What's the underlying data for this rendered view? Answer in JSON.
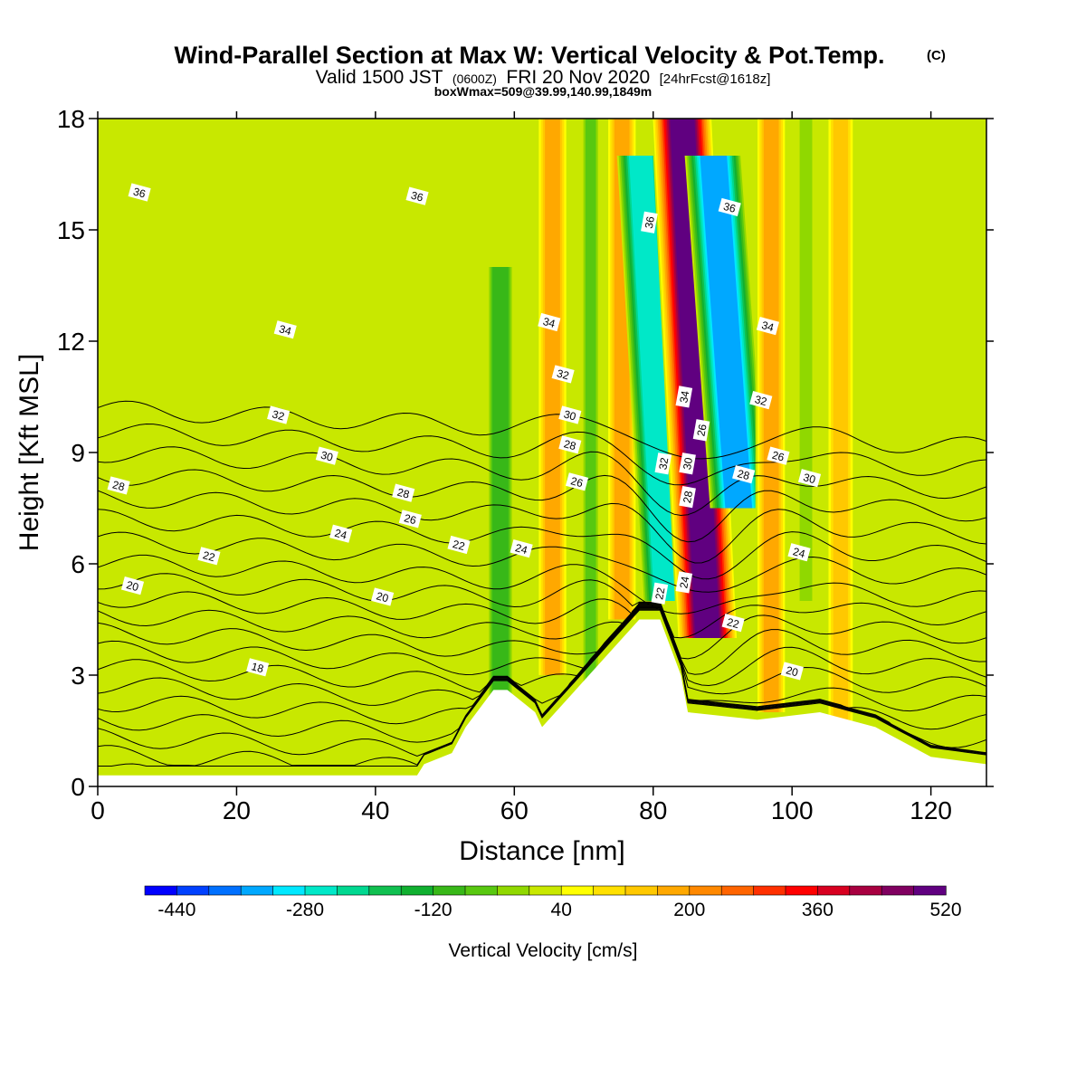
{
  "chart_data": {
    "type": "heatmap",
    "title": "Wind-Parallel Section at Max W: Vertical Velocity & Pot.Temp.",
    "title_mark": "(C)",
    "subtitle_main": "Valid 1500 JST",
    "subtitle_z": "(0600Z)",
    "subtitle_date": "FRI 20 Nov 2020",
    "subtitle_fcst": "[24hrFcst@1618z]",
    "subtitle2": "boxWmax=509@39.99,140.99,1849m",
    "xlabel": "Distance [nm]",
    "ylabel": "Height [Kft MSL]",
    "xlim": [
      0,
      128
    ],
    "ylim": [
      0,
      18
    ],
    "x_ticks": [
      0,
      20,
      40,
      60,
      80,
      100,
      120
    ],
    "y_ticks": [
      0,
      3,
      6,
      9,
      12,
      15,
      18
    ],
    "colorbar": {
      "label": "Vertical Velocity [cm/s]",
      "tick_values": [
        -440,
        -280,
        -120,
        40,
        200,
        360,
        520
      ],
      "tick_labels": [
        "-440",
        "-280",
        "-120",
        "40",
        "200",
        "360",
        "520"
      ],
      "min": -480,
      "step": 40,
      "colors": [
        "#0000ff",
        "#0040ff",
        "#0070ff",
        "#00a8ff",
        "#00e8ff",
        "#00e8c8",
        "#00d890",
        "#10c050",
        "#10b030",
        "#38b818",
        "#58c810",
        "#90d800",
        "#c8e800",
        "#ffff00",
        "#ffe000",
        "#ffc800",
        "#ffa800",
        "#ff8800",
        "#ff6400",
        "#ff3000",
        "#ff0000",
        "#d80020",
        "#a80040",
        "#800060",
        "#600080"
      ]
    },
    "background_value": 20,
    "vertical_velocity_features": [
      {
        "x": 65.5,
        "y": [
          3,
          18
        ],
        "value": 160
      },
      {
        "x": 71,
        "y": [
          2,
          18
        ],
        "value": -60
      },
      {
        "x": 75.5,
        "y": [
          4.5,
          18
        ],
        "value": 160
      },
      {
        "x": 80,
        "y": [
          5,
          17
        ],
        "value": -280
      },
      {
        "x": 86,
        "y": [
          4,
          18
        ],
        "value": 480
      },
      {
        "x": 90.5,
        "y": [
          7.5,
          17
        ],
        "value": -360
      },
      {
        "x": 97,
        "y": [
          2,
          18
        ],
        "value": 160
      },
      {
        "x": 102,
        "y": [
          5,
          18
        ],
        "value": -40
      },
      {
        "x": 107,
        "y": [
          1,
          18
        ],
        "value": 140
      },
      {
        "x": 58,
        "y": [
          2,
          14
        ],
        "value": -120
      }
    ],
    "terrain": {
      "x": [
        0,
        46,
        47,
        51,
        53,
        57,
        59,
        63,
        64,
        78,
        81,
        84,
        85,
        95,
        104,
        112,
        120,
        128
      ],
      "y": [
        0.3,
        0.3,
        0.6,
        0.9,
        1.6,
        2.6,
        2.6,
        2.0,
        1.6,
        4.5,
        4.5,
        3.0,
        2.0,
        1.8,
        2.0,
        1.6,
        0.8,
        0.6
      ]
    },
    "theta_labels": [
      {
        "x": 6,
        "y": 16.0,
        "text": "36"
      },
      {
        "x": 46,
        "y": 15.9,
        "text": "36"
      },
      {
        "x": 79.5,
        "y": 15.2,
        "text": "36"
      },
      {
        "x": 91,
        "y": 15.6,
        "text": "36"
      },
      {
        "x": 27,
        "y": 12.3,
        "text": "34"
      },
      {
        "x": 65,
        "y": 12.5,
        "text": "34"
      },
      {
        "x": 84.5,
        "y": 10.5,
        "text": "34"
      },
      {
        "x": 96.5,
        "y": 12.4,
        "text": "34"
      },
      {
        "x": 26,
        "y": 10.0,
        "text": "32"
      },
      {
        "x": 67,
        "y": 11.1,
        "text": "32"
      },
      {
        "x": 81.5,
        "y": 8.7,
        "text": "32"
      },
      {
        "x": 95.5,
        "y": 10.4,
        "text": "32"
      },
      {
        "x": 33,
        "y": 8.9,
        "text": "30"
      },
      {
        "x": 68,
        "y": 10.0,
        "text": "30"
      },
      {
        "x": 85,
        "y": 8.7,
        "text": "30"
      },
      {
        "x": 102.5,
        "y": 8.3,
        "text": "30"
      },
      {
        "x": 3,
        "y": 8.1,
        "text": "28"
      },
      {
        "x": 44,
        "y": 7.9,
        "text": "28"
      },
      {
        "x": 68,
        "y": 9.2,
        "text": "28"
      },
      {
        "x": 85,
        "y": 7.8,
        "text": "28"
      },
      {
        "x": 93,
        "y": 8.4,
        "text": "28"
      },
      {
        "x": 45,
        "y": 7.2,
        "text": "26"
      },
      {
        "x": 69,
        "y": 8.2,
        "text": "26"
      },
      {
        "x": 87,
        "y": 9.6,
        "text": "26"
      },
      {
        "x": 98,
        "y": 8.9,
        "text": "26"
      },
      {
        "x": 35,
        "y": 6.8,
        "text": "24"
      },
      {
        "x": 61,
        "y": 6.4,
        "text": "24"
      },
      {
        "x": 84.5,
        "y": 5.5,
        "text": "24"
      },
      {
        "x": 101,
        "y": 6.3,
        "text": "24"
      },
      {
        "x": 16,
        "y": 6.2,
        "text": "22"
      },
      {
        "x": 52,
        "y": 6.5,
        "text": "22"
      },
      {
        "x": 81,
        "y": 5.2,
        "text": "22"
      },
      {
        "x": 91.5,
        "y": 4.4,
        "text": "22"
      },
      {
        "x": 5,
        "y": 5.4,
        "text": "20"
      },
      {
        "x": 41,
        "y": 5.1,
        "text": "20"
      },
      {
        "x": 100,
        "y": 3.1,
        "text": "20"
      },
      {
        "x": 23,
        "y": 3.2,
        "text": "18"
      }
    ],
    "theta_levels": [
      18,
      19,
      20,
      21,
      22,
      23,
      24,
      25,
      26,
      27,
      28,
      29,
      30,
      31,
      32,
      33,
      34,
      35,
      36,
      37
    ]
  }
}
